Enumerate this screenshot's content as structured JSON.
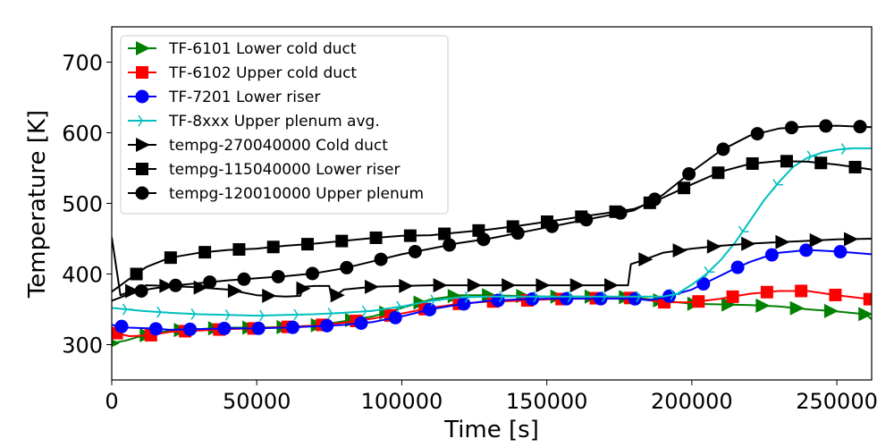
{
  "chart_data": {
    "type": "line",
    "title": "",
    "xlabel": "Time [s]",
    "ylabel": "Temperature [K]",
    "xlim": [
      0,
      262000
    ],
    "ylim": [
      250,
      750
    ],
    "xticks": [
      0,
      50000,
      100000,
      150000,
      200000,
      250000
    ],
    "xtick_labels": [
      "0",
      "50000",
      "100000",
      "150000",
      "200000",
      "250000"
    ],
    "yticks": [
      300,
      400,
      500,
      600,
      700
    ],
    "ytick_labels": [
      "300",
      "400",
      "500",
      "600",
      "700"
    ],
    "grid": false,
    "legend_position": "upper-left",
    "series": [
      {
        "name": "TF-6101 Lower cold duct",
        "color": "#008000",
        "marker": "triangle-right",
        "x": [
          0,
          5000,
          10000,
          20000,
          30000,
          40000,
          50000,
          60000,
          70000,
          80000,
          90000,
          100000,
          110000,
          120000,
          130000,
          140000,
          150000,
          160000,
          170000,
          180000,
          190000,
          200000,
          210000,
          220000,
          230000,
          240000,
          250000,
          260000,
          262000
        ],
        "y": [
          302,
          306,
          312,
          320,
          322,
          324,
          324,
          325,
          327,
          333,
          340,
          352,
          364,
          370,
          370,
          369,
          368,
          368,
          368,
          367,
          362,
          358,
          357,
          356,
          354,
          350,
          347,
          343,
          336
        ]
      },
      {
        "name": "TF-6102 Upper cold duct",
        "color": "#ff0000",
        "marker": "square",
        "x": [
          0,
          6000,
          13000,
          20000,
          30000,
          40000,
          50000,
          60000,
          70000,
          80000,
          90000,
          100000,
          110000,
          120000,
          130000,
          140000,
          150000,
          160000,
          170000,
          180000,
          190000,
          200000,
          210000,
          220000,
          230000,
          240000,
          250000,
          262000
        ],
        "y": [
          318,
          312,
          313,
          318,
          320,
          322,
          323,
          325,
          327,
          331,
          337,
          344,
          352,
          358,
          361,
          362,
          364,
          365,
          366,
          366,
          360,
          360,
          365,
          372,
          376,
          376,
          370,
          364
        ]
      },
      {
        "name": "TF-7201 Lower riser",
        "color": "#0000ff",
        "marker": "circle",
        "x": [
          0,
          6000,
          13000,
          20000,
          30000,
          40000,
          50000,
          60000,
          70000,
          80000,
          90000,
          100000,
          110000,
          120000,
          130000,
          140000,
          150000,
          160000,
          170000,
          180000,
          185000,
          190000,
          195000,
          200000,
          205000,
          210000,
          215000,
          220000,
          225000,
          230000,
          240000,
          250000,
          262000
        ],
        "y": [
          328,
          324,
          323,
          321,
          322,
          323,
          323,
          324,
          326,
          328,
          332,
          340,
          350,
          357,
          362,
          364,
          365,
          365,
          365,
          365,
          363,
          366,
          372,
          378,
          388,
          398,
          408,
          417,
          424,
          430,
          434,
          432,
          428
        ]
      },
      {
        "name": "TF-8xxx Upper plenum avg.",
        "color": "#00bfbf",
        "marker": "tri-right",
        "x": [
          0,
          10000,
          20000,
          30000,
          40000,
          50000,
          60000,
          70000,
          80000,
          90000,
          100000,
          110000,
          120000,
          130000,
          140000,
          150000,
          160000,
          170000,
          180000,
          190000,
          195000,
          200000,
          205000,
          210000,
          215000,
          220000,
          225000,
          230000,
          235000,
          240000,
          245000,
          250000,
          255000,
          262000
        ],
        "y": [
          352,
          348,
          345,
          343,
          342,
          341,
          342,
          343,
          345,
          348,
          354,
          362,
          367,
          368,
          368,
          368,
          368,
          368,
          368,
          368,
          372,
          385,
          400,
          420,
          445,
          475,
          505,
          530,
          552,
          565,
          572,
          576,
          578,
          578
        ]
      },
      {
        "name": "tempg-270040000 Cold duct",
        "color": "#000000",
        "marker": "triangle-right",
        "x": [
          0,
          3000,
          12000,
          20000,
          30000,
          40000,
          50000,
          60000,
          65000,
          66000,
          70000,
          75000,
          76000,
          78000,
          80000,
          90000,
          100000,
          110000,
          120000,
          130000,
          140000,
          150000,
          160000,
          170000,
          178000,
          179000,
          182000,
          190000,
          200000,
          210000,
          220000,
          230000,
          240000,
          250000,
          262000
        ],
        "y": [
          452,
          370,
          384,
          383,
          381,
          378,
          370,
          368,
          369,
          382,
          383,
          383,
          362,
          372,
          378,
          382,
          383,
          384,
          384,
          384,
          384,
          384,
          384,
          384,
          384,
          414,
          418,
          430,
          436,
          440,
          443,
          445,
          447,
          449,
          450
        ]
      },
      {
        "name": "tempg-115040000 Lower riser",
        "color": "#000000",
        "marker": "square",
        "x": [
          0,
          5000,
          12000,
          20000,
          30000,
          40000,
          50000,
          60000,
          70000,
          80000,
          90000,
          100000,
          110000,
          120000,
          130000,
          140000,
          150000,
          160000,
          170000,
          180000,
          190000,
          200000,
          210000,
          220000,
          230000,
          240000,
          250000,
          262000
        ],
        "y": [
          375,
          390,
          410,
          423,
          430,
          434,
          436,
          440,
          443,
          447,
          451,
          454,
          455,
          459,
          463,
          468,
          474,
          480,
          486,
          492,
          508,
          527,
          545,
          556,
          560,
          559,
          555,
          548
        ]
      },
      {
        "name": "tempg-120010000 Upper plenum",
        "color": "#000000",
        "marker": "circle",
        "x": [
          0,
          5000,
          12000,
          20000,
          30000,
          40000,
          50000,
          60000,
          70000,
          80000,
          90000,
          100000,
          110000,
          120000,
          130000,
          140000,
          150000,
          160000,
          170000,
          180000,
          190000,
          200000,
          210000,
          220000,
          230000,
          240000,
          250000,
          262000
        ],
        "y": [
          362,
          370,
          378,
          383,
          387,
          391,
          394,
          397,
          401,
          408,
          418,
          428,
          436,
          444,
          450,
          458,
          466,
          474,
          482,
          490,
          512,
          545,
          575,
          596,
          606,
          609,
          610,
          608
        ]
      }
    ]
  }
}
